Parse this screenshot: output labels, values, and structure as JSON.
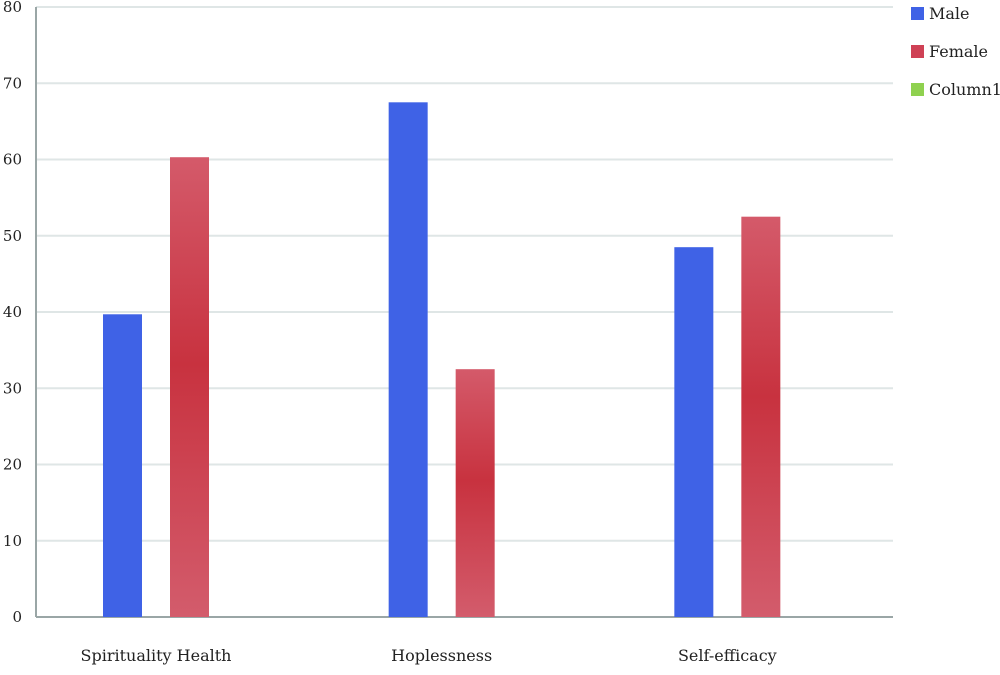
{
  "chart_data": {
    "type": "bar",
    "categories": [
      "Spirituality Health",
      "Hoplessness",
      "Self-efficacy"
    ],
    "series": [
      {
        "name": "Male",
        "color": "#3f62e6",
        "values": [
          39.7,
          67.5,
          48.5
        ]
      },
      {
        "name": "Female",
        "color": "#cf4155",
        "values": [
          60.3,
          32.5,
          52.5
        ]
      },
      {
        "name": "Column1",
        "color": "#8fd14f",
        "values": [
          0,
          0,
          0
        ]
      }
    ],
    "ylim": [
      0,
      80
    ],
    "yticks": [
      0,
      10,
      20,
      30,
      40,
      50,
      60,
      70,
      80
    ],
    "grid": true,
    "legend_position": "top-right"
  }
}
